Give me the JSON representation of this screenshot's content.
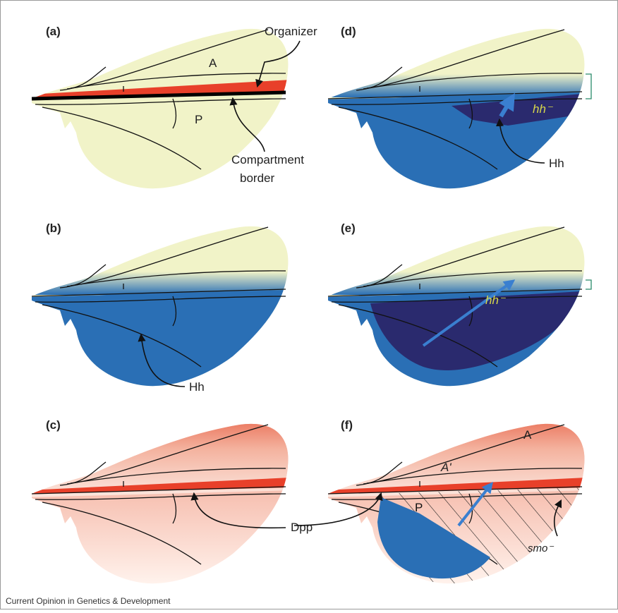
{
  "panels": [
    {
      "label": "(a)",
      "texts": [
        "Organizer",
        "A",
        "P",
        "Compartment",
        "border"
      ]
    },
    {
      "label": "(b)",
      "texts": [
        "Hh"
      ]
    },
    {
      "label": "(c)",
      "texts": [
        "Dpp"
      ]
    },
    {
      "label": "(d)",
      "texts": [
        "hh⁻",
        "Hh"
      ]
    },
    {
      "label": "(e)",
      "texts": [
        "hh⁻"
      ]
    },
    {
      "label": "(f)",
      "texts": [
        "A",
        "A'",
        "P",
        "smo⁻"
      ]
    }
  ],
  "footer": "Current Opinion in Genetics & Development"
}
